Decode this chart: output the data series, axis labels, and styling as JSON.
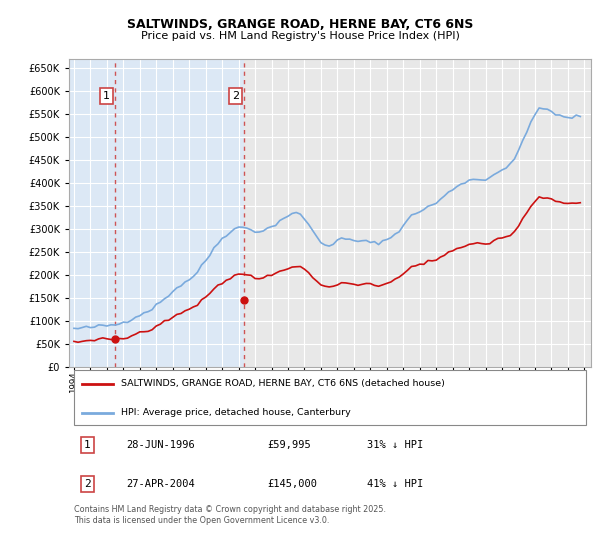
{
  "title": "SALTWINDS, GRANGE ROAD, HERNE BAY, CT6 6NS",
  "subtitle": "Price paid vs. HM Land Registry's House Price Index (HPI)",
  "ylim": [
    0,
    670000
  ],
  "yticks": [
    0,
    50000,
    100000,
    150000,
    200000,
    250000,
    300000,
    350000,
    400000,
    450000,
    500000,
    550000,
    600000,
    650000
  ],
  "xlim_start": 1993.7,
  "xlim_end": 2025.4,
  "bg_color": "#ffffff",
  "plot_bg_color": "#dce8f5",
  "plot_bg_color2": "#e8e8e8",
  "grid_color": "#ffffff",
  "hpi_color": "#7aaadd",
  "price_color": "#cc1111",
  "vline_color": "#cc4444",
  "transaction1_x": 1996.49,
  "transaction1_y": 59995,
  "transaction1_label": "1",
  "transaction2_x": 2004.32,
  "transaction2_y": 145000,
  "transaction2_label": "2",
  "legend_price_label": "SALTWINDS, GRANGE ROAD, HERNE BAY, CT6 6NS (detached house)",
  "legend_hpi_label": "HPI: Average price, detached house, Canterbury",
  "table_rows": [
    {
      "num": "1",
      "date": "28-JUN-1996",
      "price": "£59,995",
      "hpi": "31% ↓ HPI"
    },
    {
      "num": "2",
      "date": "27-APR-2004",
      "price": "£145,000",
      "hpi": "41% ↓ HPI"
    }
  ],
  "footer": "Contains HM Land Registry data © Crown copyright and database right 2025.\nThis data is licensed under the Open Government Licence v3.0.",
  "hpi_data_x": [
    1994.0,
    1994.25,
    1994.5,
    1994.75,
    1995.0,
    1995.25,
    1995.5,
    1995.75,
    1996.0,
    1996.25,
    1996.5,
    1996.75,
    1997.0,
    1997.25,
    1997.5,
    1997.75,
    1998.0,
    1998.25,
    1998.5,
    1998.75,
    1999.0,
    1999.25,
    1999.5,
    1999.75,
    2000.0,
    2000.25,
    2000.5,
    2000.75,
    2001.0,
    2001.25,
    2001.5,
    2001.75,
    2002.0,
    2002.25,
    2002.5,
    2002.75,
    2003.0,
    2003.25,
    2003.5,
    2003.75,
    2004.0,
    2004.25,
    2004.5,
    2004.75,
    2005.0,
    2005.25,
    2005.5,
    2005.75,
    2006.0,
    2006.25,
    2006.5,
    2006.75,
    2007.0,
    2007.25,
    2007.5,
    2007.75,
    2008.0,
    2008.25,
    2008.5,
    2008.75,
    2009.0,
    2009.25,
    2009.5,
    2009.75,
    2010.0,
    2010.25,
    2010.5,
    2010.75,
    2011.0,
    2011.25,
    2011.5,
    2011.75,
    2012.0,
    2012.25,
    2012.5,
    2012.75,
    2013.0,
    2013.25,
    2013.5,
    2013.75,
    2014.0,
    2014.25,
    2014.5,
    2014.75,
    2015.0,
    2015.25,
    2015.5,
    2015.75,
    2016.0,
    2016.25,
    2016.5,
    2016.75,
    2017.0,
    2017.25,
    2017.5,
    2017.75,
    2018.0,
    2018.25,
    2018.5,
    2018.75,
    2019.0,
    2019.25,
    2019.5,
    2019.75,
    2020.0,
    2020.25,
    2020.5,
    2020.75,
    2021.0,
    2021.25,
    2021.5,
    2021.75,
    2022.0,
    2022.25,
    2022.5,
    2022.75,
    2023.0,
    2023.25,
    2023.5,
    2023.75,
    2024.0,
    2024.25,
    2024.5,
    2024.75
  ],
  "hpi_data_y": [
    82000,
    82500,
    83000,
    84000,
    85000,
    86000,
    87000,
    88000,
    89000,
    90000,
    91500,
    93500,
    97000,
    101000,
    106000,
    110000,
    113000,
    117000,
    122000,
    127000,
    133000,
    140000,
    148000,
    157000,
    165000,
    172000,
    178000,
    184000,
    190000,
    197000,
    206000,
    217000,
    230000,
    244000,
    258000,
    270000,
    280000,
    289000,
    296000,
    300000,
    302000,
    303000,
    302000,
    299000,
    296000,
    295000,
    296000,
    299000,
    304000,
    311000,
    318000,
    324000,
    329000,
    332000,
    333000,
    330000,
    323000,
    311000,
    295000,
    280000,
    270000,
    265000,
    265000,
    269000,
    274000,
    277000,
    277000,
    275000,
    273000,
    274000,
    273000,
    271000,
    269000,
    269000,
    271000,
    273000,
    276000,
    281000,
    289000,
    298000,
    308000,
    318000,
    327000,
    334000,
    339000,
    343000,
    347000,
    351000,
    356000,
    363000,
    371000,
    378000,
    386000,
    393000,
    399000,
    403000,
    406000,
    407000,
    407000,
    407000,
    409000,
    413000,
    419000,
    425000,
    429000,
    430000,
    437000,
    450000,
    470000,
    493000,
    515000,
    534000,
    548000,
    558000,
    561000,
    560000,
    556000,
    550000,
    545000,
    541000,
    540000,
    542000,
    545000,
    548000
  ],
  "noise_seed": 42
}
